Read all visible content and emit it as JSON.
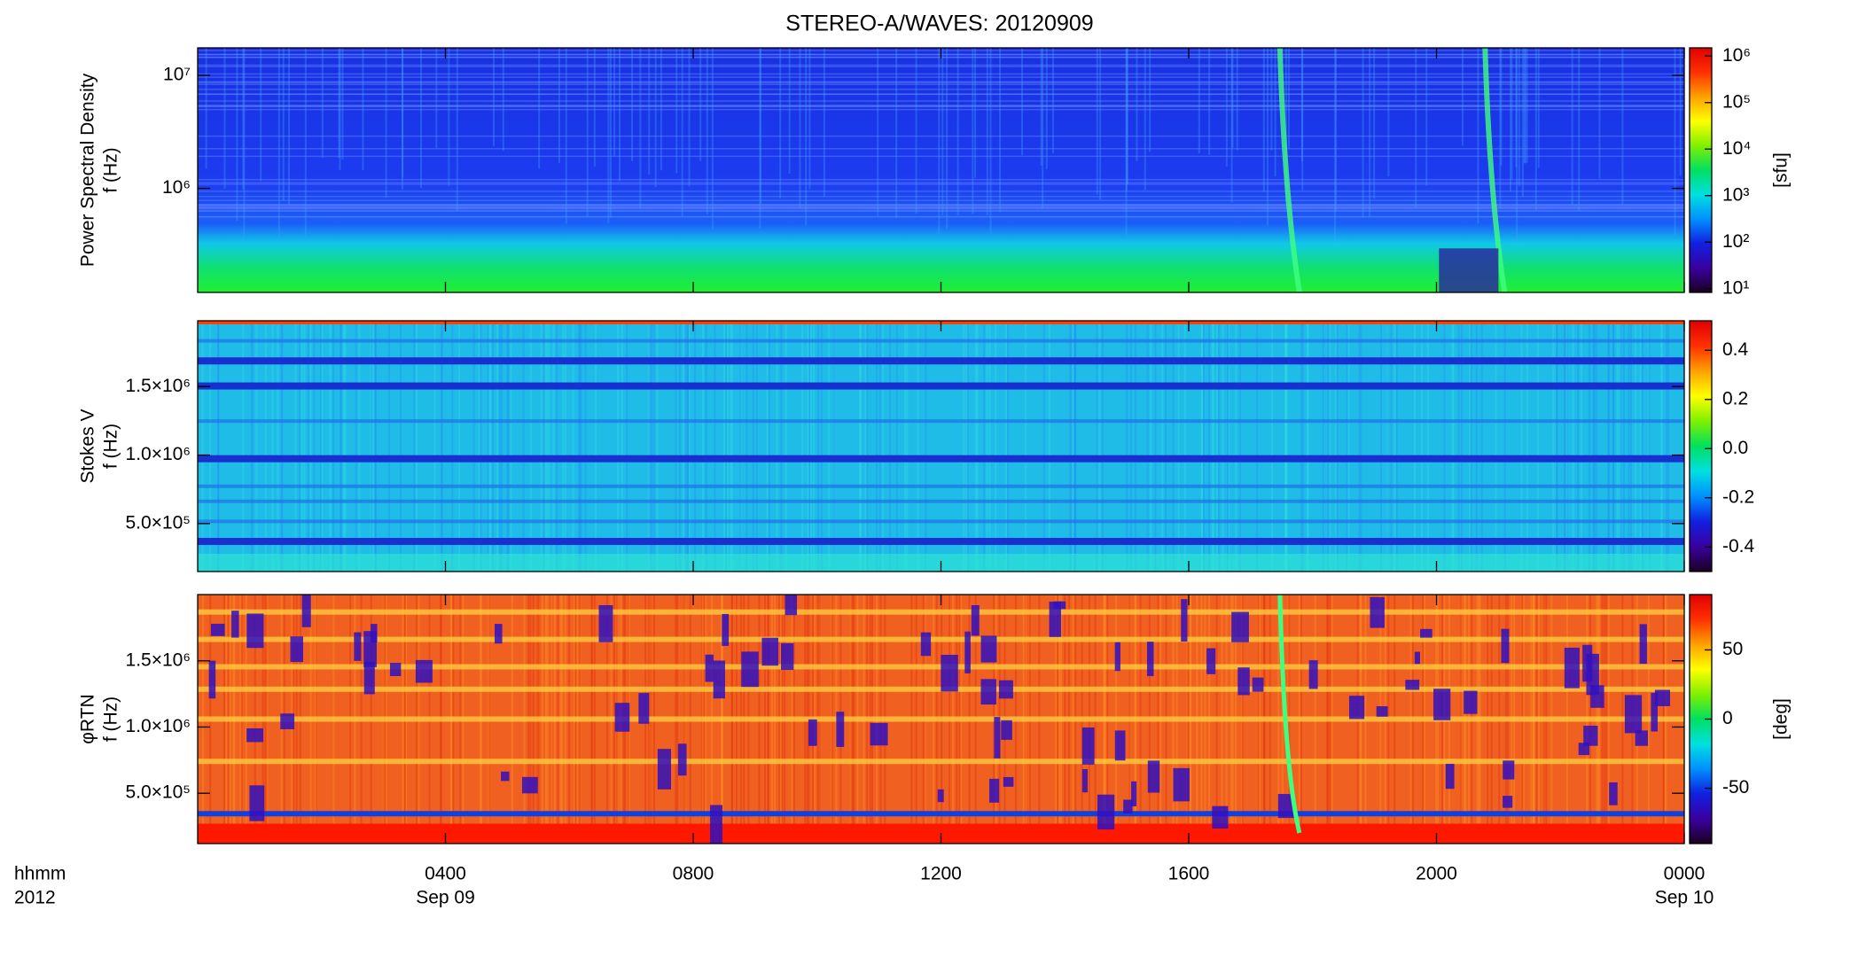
{
  "chart_data": [
    {
      "type": "spectrogram",
      "title": "STEREO-A/WAVES: 20120909",
      "ylabel": [
        "Power Spectral Density",
        "f (Hz)"
      ],
      "yscale": "log",
      "ylim": [
        120000,
        17500000
      ],
      "yticks": [
        {
          "value": 1000000,
          "label": "10⁶"
        },
        {
          "value": 10000000,
          "label": "10⁷"
        }
      ],
      "xlim": [
        0,
        24
      ],
      "zscale": "log",
      "zlim": [
        8.3,
        1500000
      ],
      "zticks": [
        {
          "value": 10,
          "label": "10¹"
        },
        {
          "value": 100,
          "label": "10²"
        },
        {
          "value": 1000,
          "label": "10³"
        },
        {
          "value": 10000,
          "label": "10⁴"
        },
        {
          "value": 100000,
          "label": "10⁵"
        },
        {
          "value": 1000000,
          "label": "10⁶"
        }
      ],
      "zlabel": "[sfu]",
      "colormap": [
        "#1a0020",
        "#3a00a0",
        "#1020e0",
        "#0090ff",
        "#00e0e0",
        "#00e060",
        "#80f000",
        "#ffff00",
        "#ffa000",
        "#ff3000",
        "#e00000"
      ]
    },
    {
      "type": "spectrogram",
      "ylabel": [
        "Stokes V",
        "f (Hz)"
      ],
      "yscale": "linear",
      "ylim": [
        150000,
        1980000
      ],
      "yticks": [
        {
          "value": 500000,
          "label": "5.0×10⁵"
        },
        {
          "value": 1000000,
          "label": "1.0×10⁶"
        },
        {
          "value": 1500000,
          "label": "1.5×10⁶"
        }
      ],
      "xlim": [
        0,
        24
      ],
      "zscale": "linear",
      "zlim": [
        -0.5,
        0.52
      ],
      "zticks": [
        -0.4,
        -0.2,
        {
          "value": 0,
          "label": "0.0"
        },
        0.2,
        0.4
      ],
      "colormap": [
        "#1a0020",
        "#3a00a0",
        "#1020e0",
        "#0090ff",
        "#00e0e0",
        "#00e060",
        "#80f000",
        "#ffff00",
        "#ffa000",
        "#ff3000",
        "#e00000"
      ]
    },
    {
      "type": "spectrogram",
      "ylabel": [
        "φRTN",
        "f (Hz)"
      ],
      "yscale": "linear",
      "ylim": [
        120000,
        2000000
      ],
      "yticks": [
        {
          "value": 500000,
          "label": "5.0×10⁵"
        },
        {
          "value": 1000000,
          "label": "1.0×10⁶"
        },
        {
          "value": 1500000,
          "label": "1.5×10⁶"
        }
      ],
      "xlim": [
        0,
        24
      ],
      "xticks": [
        {
          "value": 4,
          "label": "0400"
        },
        {
          "value": 8,
          "label": "0800"
        },
        {
          "value": 12,
          "label": "1200"
        },
        {
          "value": 16,
          "label": "1600"
        },
        {
          "value": 20,
          "label": "2000"
        },
        {
          "value": 24,
          "label": "0000"
        }
      ],
      "xdates": [
        {
          "value": 4,
          "label": "Sep 09"
        },
        {
          "value": 24,
          "label": "Sep 10"
        }
      ],
      "xlabel": [
        "hhmm",
        "2012"
      ],
      "zscale": "linear",
      "zlim": [
        -90,
        90
      ],
      "zticks": [
        -50,
        0,
        50
      ],
      "zlabel": "[deg]",
      "colormap": [
        "#1a0020",
        "#3a00a0",
        "#1020e0",
        "#0090ff",
        "#00e0e0",
        "#00e060",
        "#80f000",
        "#ffff00",
        "#ffa000",
        "#ff3000",
        "#e00000"
      ]
    }
  ]
}
